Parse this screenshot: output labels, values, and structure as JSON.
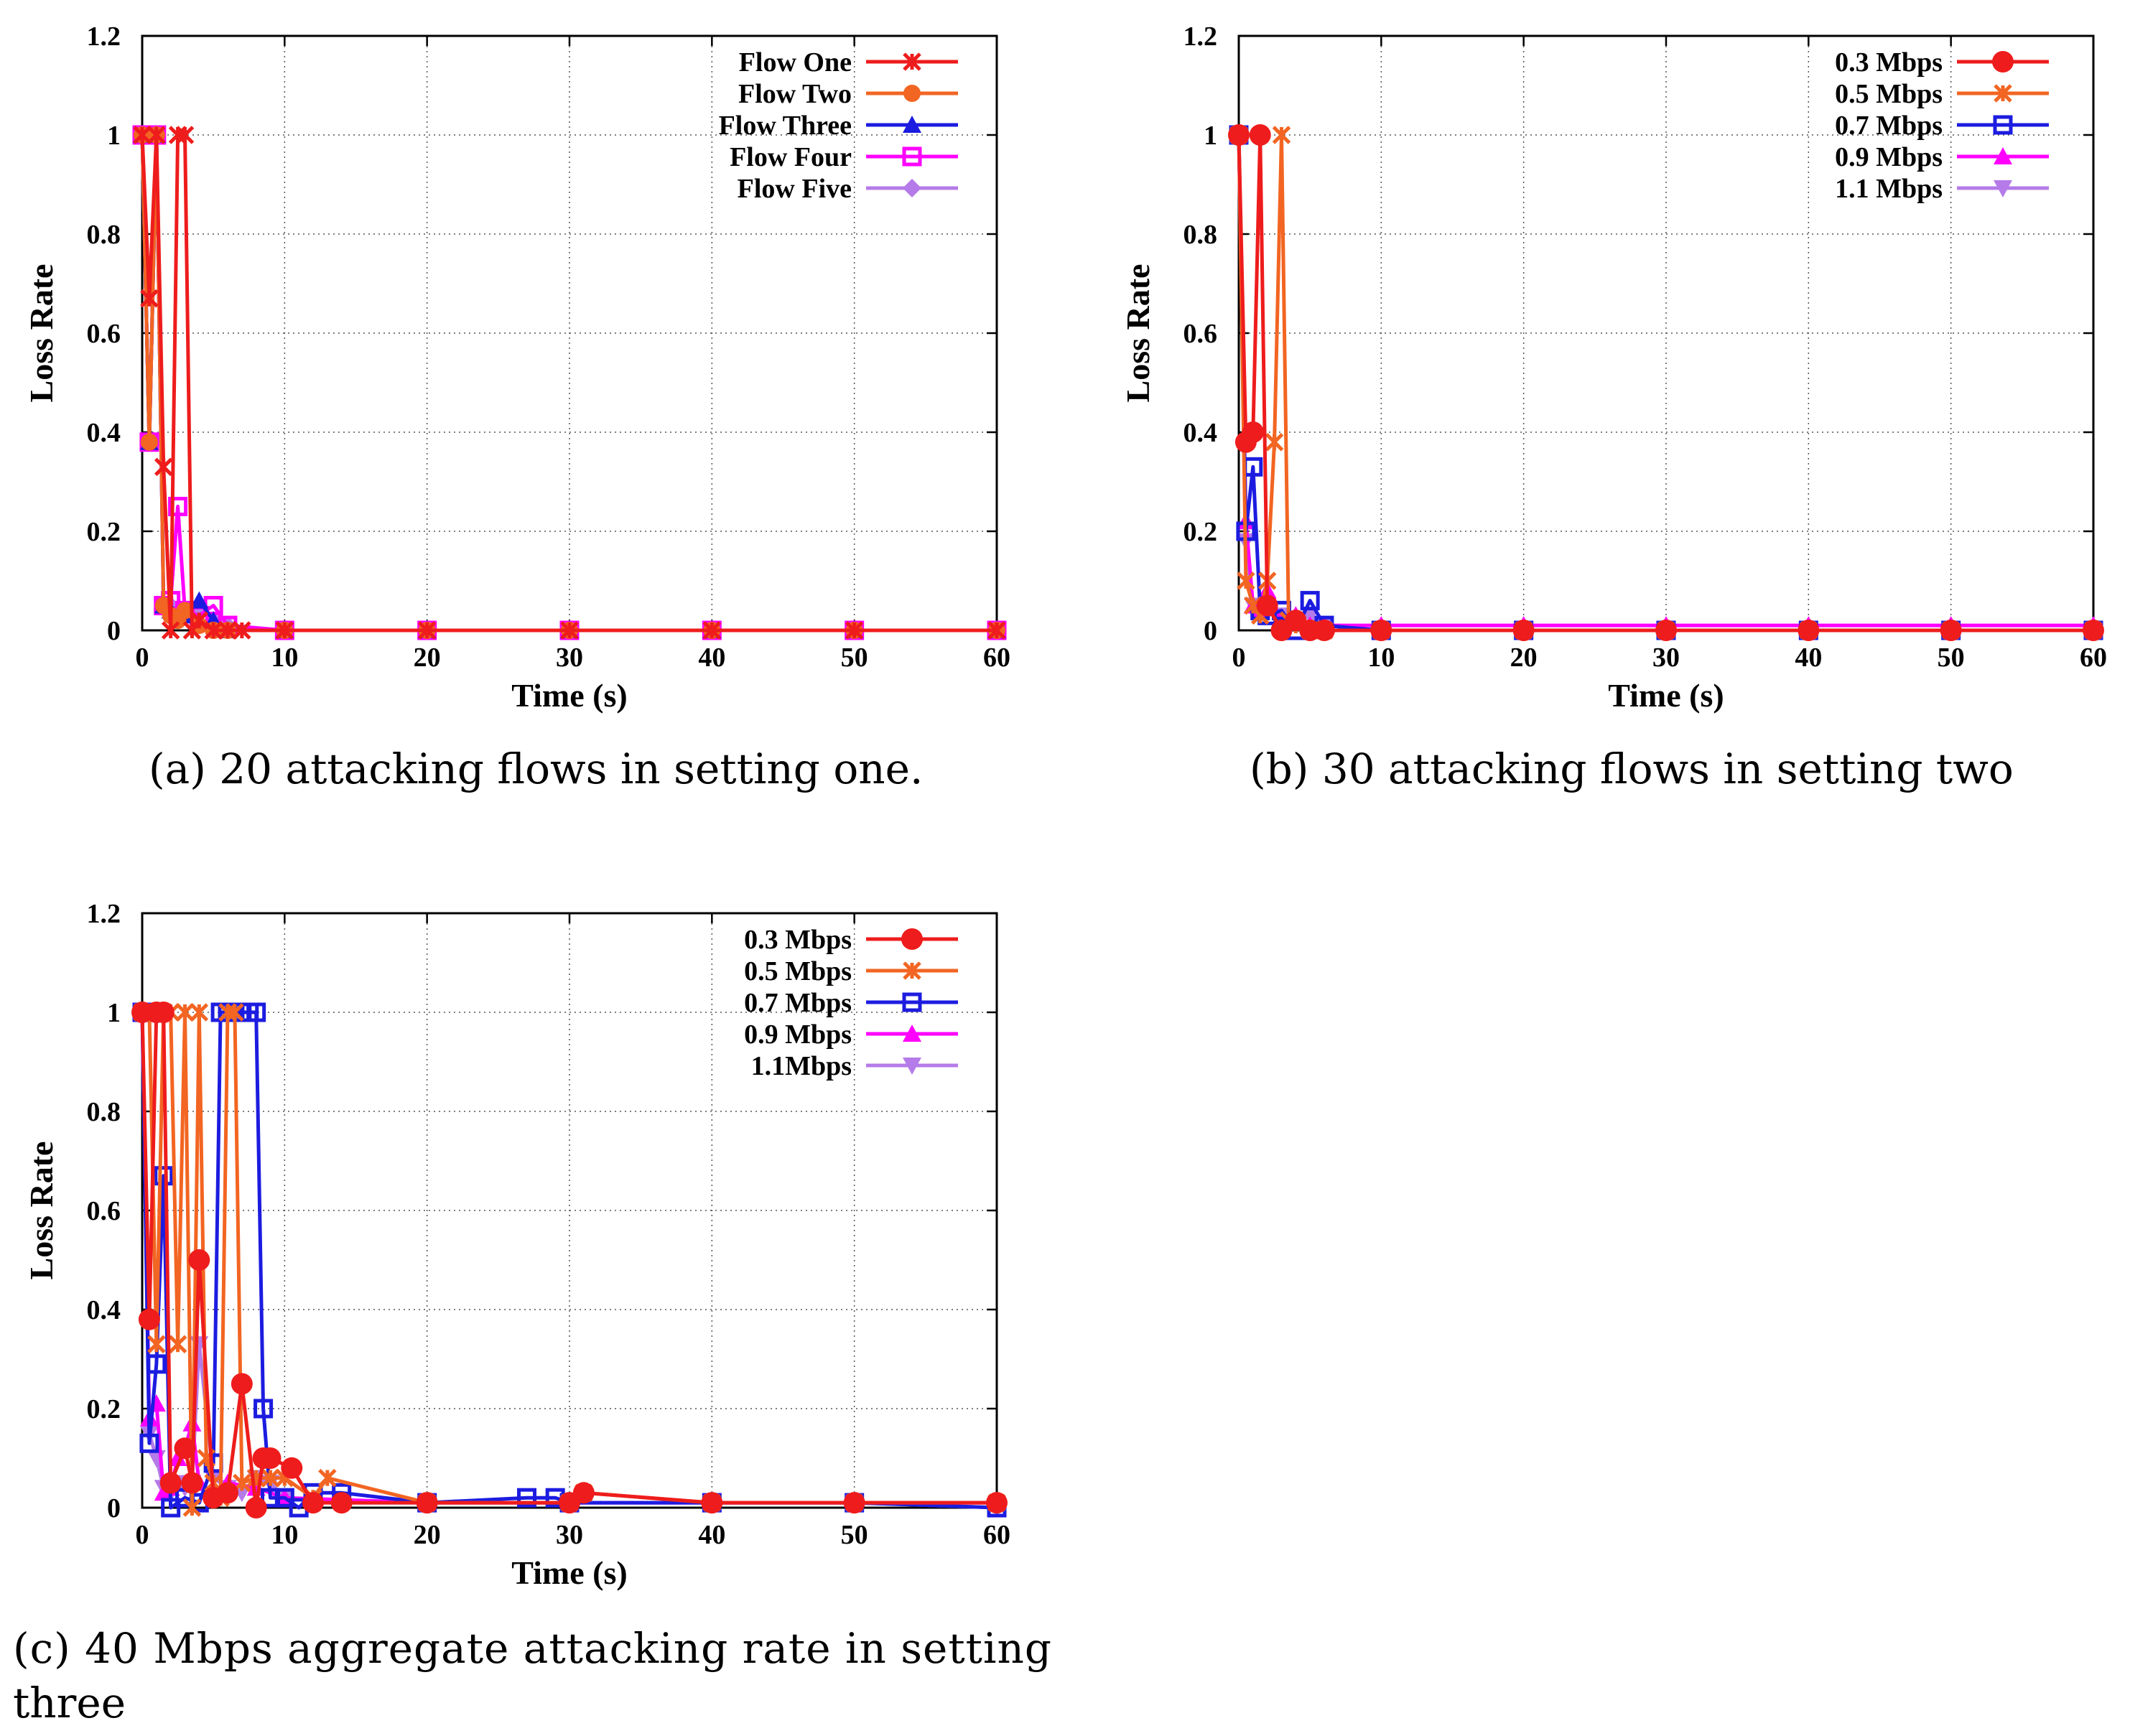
{
  "captions": [
    "(a)  20 attacking flows in setting one.",
    "(b)  30 attacking flows in setting two",
    "(c)  40 Mbps aggregate attacking rate in setting",
    "three"
  ],
  "chart_data": [
    {
      "type": "line",
      "xlabel": "Time (s)",
      "ylabel": "Loss Rate",
      "xlim": [
        0,
        60
      ],
      "ylim": [
        0,
        1.2
      ],
      "xticks": [
        "0",
        "10",
        "20",
        "30",
        "40",
        "50",
        "60"
      ],
      "yticks": [
        "0",
        "0.2",
        "0.4",
        "0.6",
        "0.8",
        "1",
        "1.2"
      ],
      "grid": true,
      "legend_position": "top-right",
      "series": [
        {
          "name": "Flow One",
          "color": "#ee1c1c",
          "marker": "x",
          "x": [
            0,
            0.5,
            1,
            1.5,
            2,
            2.5,
            3,
            3.5,
            4,
            5,
            6,
            7,
            10,
            20,
            30,
            40,
            50,
            60
          ],
          "y": [
            1,
            0.67,
            1,
            0.33,
            0,
            1,
            1,
            0,
            0.02,
            0,
            0,
            0,
            0,
            0,
            0,
            0,
            0,
            0
          ]
        },
        {
          "name": "Flow Two",
          "color": "#f26522",
          "marker": "circle",
          "x": [
            0,
            0.5,
            1,
            1.5,
            2,
            2.5,
            3,
            4,
            5,
            6,
            10,
            20,
            30,
            40,
            50,
            60
          ],
          "y": [
            1,
            0.38,
            1,
            0.05,
            0.03,
            0.02,
            0.04,
            0.01,
            0,
            0,
            0,
            0,
            0,
            0,
            0,
            0
          ]
        },
        {
          "name": "Flow Three",
          "color": "#1c1ce0",
          "marker": "triangle",
          "x": [
            0,
            0.5,
            1,
            1.5,
            2,
            3,
            4,
            5,
            6,
            10,
            20,
            30,
            40,
            50,
            60
          ],
          "y": [
            1,
            0.38,
            1,
            0.05,
            0.04,
            0.03,
            0.06,
            0.02,
            0,
            0,
            0,
            0,
            0,
            0,
            0
          ]
        },
        {
          "name": "Flow Four",
          "color": "#ff00ff",
          "marker": "square",
          "x": [
            0,
            0.5,
            1,
            1.5,
            2,
            2.5,
            3,
            4,
            5,
            6,
            10,
            20,
            30,
            40,
            50,
            60
          ],
          "y": [
            1,
            0.38,
            1,
            0.05,
            0.06,
            0.25,
            0.04,
            0.03,
            0.05,
            0.01,
            0,
            0,
            0,
            0,
            0,
            0
          ]
        },
        {
          "name": "Flow Five",
          "color": "#b57be8",
          "marker": "diamond",
          "x": [
            0,
            0.5,
            1,
            1.5,
            2,
            3,
            4,
            5,
            6,
            10,
            20,
            30,
            40,
            50,
            60
          ],
          "y": [
            1,
            0.38,
            1,
            0.05,
            0.05,
            0.03,
            0.04,
            0.02,
            0.01,
            0,
            0,
            0,
            0,
            0,
            0
          ]
        }
      ]
    },
    {
      "type": "line",
      "xlabel": "Time (s)",
      "ylabel": "Loss Rate",
      "xlim": [
        0,
        60
      ],
      "ylim": [
        0,
        1.2
      ],
      "xticks": [
        "0",
        "10",
        "20",
        "30",
        "40",
        "50",
        "60"
      ],
      "yticks": [
        "0",
        "0.2",
        "0.4",
        "0.6",
        "0.8",
        "1",
        "1.2"
      ],
      "grid": true,
      "legend_position": "top-right",
      "series": [
        {
          "name": "0.3 Mbps",
          "color": "#ee1c1c",
          "marker": "circle-filled",
          "x": [
            0,
            0.5,
            1,
            1.5,
            2,
            3,
            4,
            5,
            6,
            10,
            20,
            30,
            40,
            50,
            60
          ],
          "y": [
            1,
            0.38,
            0.4,
            1,
            0.05,
            0,
            0.02,
            0,
            0,
            0,
            0,
            0,
            0,
            0,
            0
          ]
        },
        {
          "name": "0.5 Mbps",
          "color": "#f26522",
          "marker": "x",
          "x": [
            0,
            0.5,
            1,
            1.5,
            2,
            2.5,
            3,
            3.5,
            4,
            5,
            6,
            10,
            20,
            30,
            40,
            50,
            60
          ],
          "y": [
            1,
            0.1,
            0.05,
            0.03,
            0.1,
            0.38,
            1,
            0.02,
            0.01,
            0,
            0,
            0,
            0,
            0,
            0,
            0,
            0
          ]
        },
        {
          "name": "0.7 Mbps",
          "color": "#1c1ce0",
          "marker": "square",
          "x": [
            0,
            0.5,
            1,
            1.5,
            2,
            3,
            4,
            5,
            6,
            10,
            20,
            30,
            40,
            50,
            60
          ],
          "y": [
            1,
            0.2,
            0.33,
            0.04,
            0.03,
            0.04,
            0,
            0.06,
            0.01,
            0,
            0,
            0,
            0,
            0,
            0
          ]
        },
        {
          "name": "0.9 Mbps",
          "color": "#ff00ff",
          "marker": "triangle",
          "x": [
            0,
            0.5,
            1,
            1.5,
            2,
            3,
            4,
            5,
            6,
            10,
            20,
            30,
            40,
            50,
            60
          ],
          "y": [
            1,
            0.22,
            0.05,
            0.04,
            0.08,
            0.02,
            0.03,
            0.01,
            0.01,
            0.01,
            0.01,
            0.01,
            0.01,
            0.01,
            0.01
          ]
        },
        {
          "name": "1.1 Mbps",
          "color": "#b57be8",
          "marker": "triangle-down",
          "x": [
            0,
            0.5,
            1,
            1.5,
            2,
            3,
            4,
            5,
            6,
            10,
            20,
            30,
            40,
            50,
            60
          ],
          "y": [
            1,
            0.18,
            0.05,
            0.03,
            0.04,
            0.03,
            0.02,
            0.03,
            0.01,
            0,
            0,
            0,
            0,
            0,
            0
          ]
        }
      ]
    },
    {
      "type": "line",
      "xlabel": "Time (s)",
      "ylabel": "Loss Rate",
      "xlim": [
        0,
        60
      ],
      "ylim": [
        0,
        1.2
      ],
      "xticks": [
        "0",
        "10",
        "20",
        "30",
        "40",
        "50",
        "60"
      ],
      "yticks": [
        "0",
        "0.2",
        "0.4",
        "0.6",
        "0.8",
        "1",
        "1.2"
      ],
      "grid": true,
      "legend_position": "top-right",
      "series": [
        {
          "name": "0.3 Mbps",
          "color": "#ee1c1c",
          "marker": "circle-filled",
          "x": [
            0,
            0.5,
            1,
            1.5,
            2,
            3,
            3.5,
            4,
            5,
            6,
            7,
            8,
            8.5,
            9,
            10.5,
            12,
            14,
            20,
            30,
            31,
            40,
            50,
            60
          ],
          "y": [
            1,
            0.38,
            1,
            1,
            0.05,
            0.12,
            0.05,
            0.5,
            0.02,
            0.03,
            0.25,
            0,
            0.1,
            0.1,
            0.08,
            0.01,
            0.01,
            0.01,
            0.01,
            0.03,
            0.01,
            0.01,
            0.01
          ]
        },
        {
          "name": "0.5 Mbps",
          "color": "#f26522",
          "marker": "x",
          "x": [
            0,
            0.5,
            1,
            1.5,
            2,
            2.5,
            3,
            3.5,
            4,
            4.5,
            5,
            5.5,
            6,
            6.5,
            7,
            8,
            9,
            10,
            12,
            13,
            20,
            30,
            31,
            40,
            50,
            60
          ],
          "y": [
            1,
            1,
            0.33,
            1,
            1,
            0.33,
            1,
            0,
            1,
            0.1,
            0.05,
            0.02,
            1,
            1,
            0.05,
            0.06,
            0.06,
            0.06,
            0.02,
            0.06,
            0.01,
            0.01,
            0.03,
            0.01,
            0.01,
            0.01
          ]
        },
        {
          "name": "0.7 Mbps",
          "color": "#1c1ce0",
          "marker": "square",
          "x": [
            0,
            0.5,
            1,
            1.5,
            2,
            3,
            4,
            5,
            5.5,
            6,
            6.5,
            7,
            7.5,
            8,
            8.5,
            9,
            10,
            11,
            12,
            14,
            20,
            27,
            29,
            30,
            40,
            50,
            60
          ],
          "y": [
            1,
            0.13,
            0.29,
            0.67,
            0,
            0.02,
            0.01,
            0.09,
            1,
            1,
            1,
            1,
            1,
            1,
            0.2,
            0.02,
            0.02,
            0,
            0.03,
            0.03,
            0.01,
            0.02,
            0.02,
            0.01,
            0.01,
            0.01,
            0
          ]
        },
        {
          "name": "0.9 Mbps",
          "color": "#ff00ff",
          "marker": "triangle",
          "x": [
            0,
            0.5,
            1,
            1.5,
            2,
            2.5,
            3,
            3.5,
            4,
            5,
            6,
            8,
            10,
            20,
            30,
            40,
            50,
            60
          ],
          "y": [
            1,
            0.18,
            0.21,
            0.03,
            0.04,
            0.1,
            0.12,
            0.17,
            0.05,
            0.03,
            0.05,
            0.04,
            0.02,
            0.01,
            0.01,
            0.01,
            0.01,
            0.01
          ]
        },
        {
          "name": "1.1Mbps",
          "color": "#b57be8",
          "marker": "triangle-down",
          "x": [
            0,
            0.5,
            1,
            1.5,
            2,
            2.5,
            3,
            3.5,
            4,
            5,
            6,
            7,
            8,
            9,
            10,
            14,
            20,
            30,
            40,
            50,
            60
          ],
          "y": [
            1,
            0.15,
            0.1,
            0.04,
            0.03,
            0.05,
            0.04,
            0.05,
            0.33,
            0.06,
            0.04,
            0.03,
            0.06,
            0.05,
            0.02,
            0.01,
            0.01,
            0.01,
            0.01,
            0.01,
            0
          ]
        }
      ]
    }
  ]
}
